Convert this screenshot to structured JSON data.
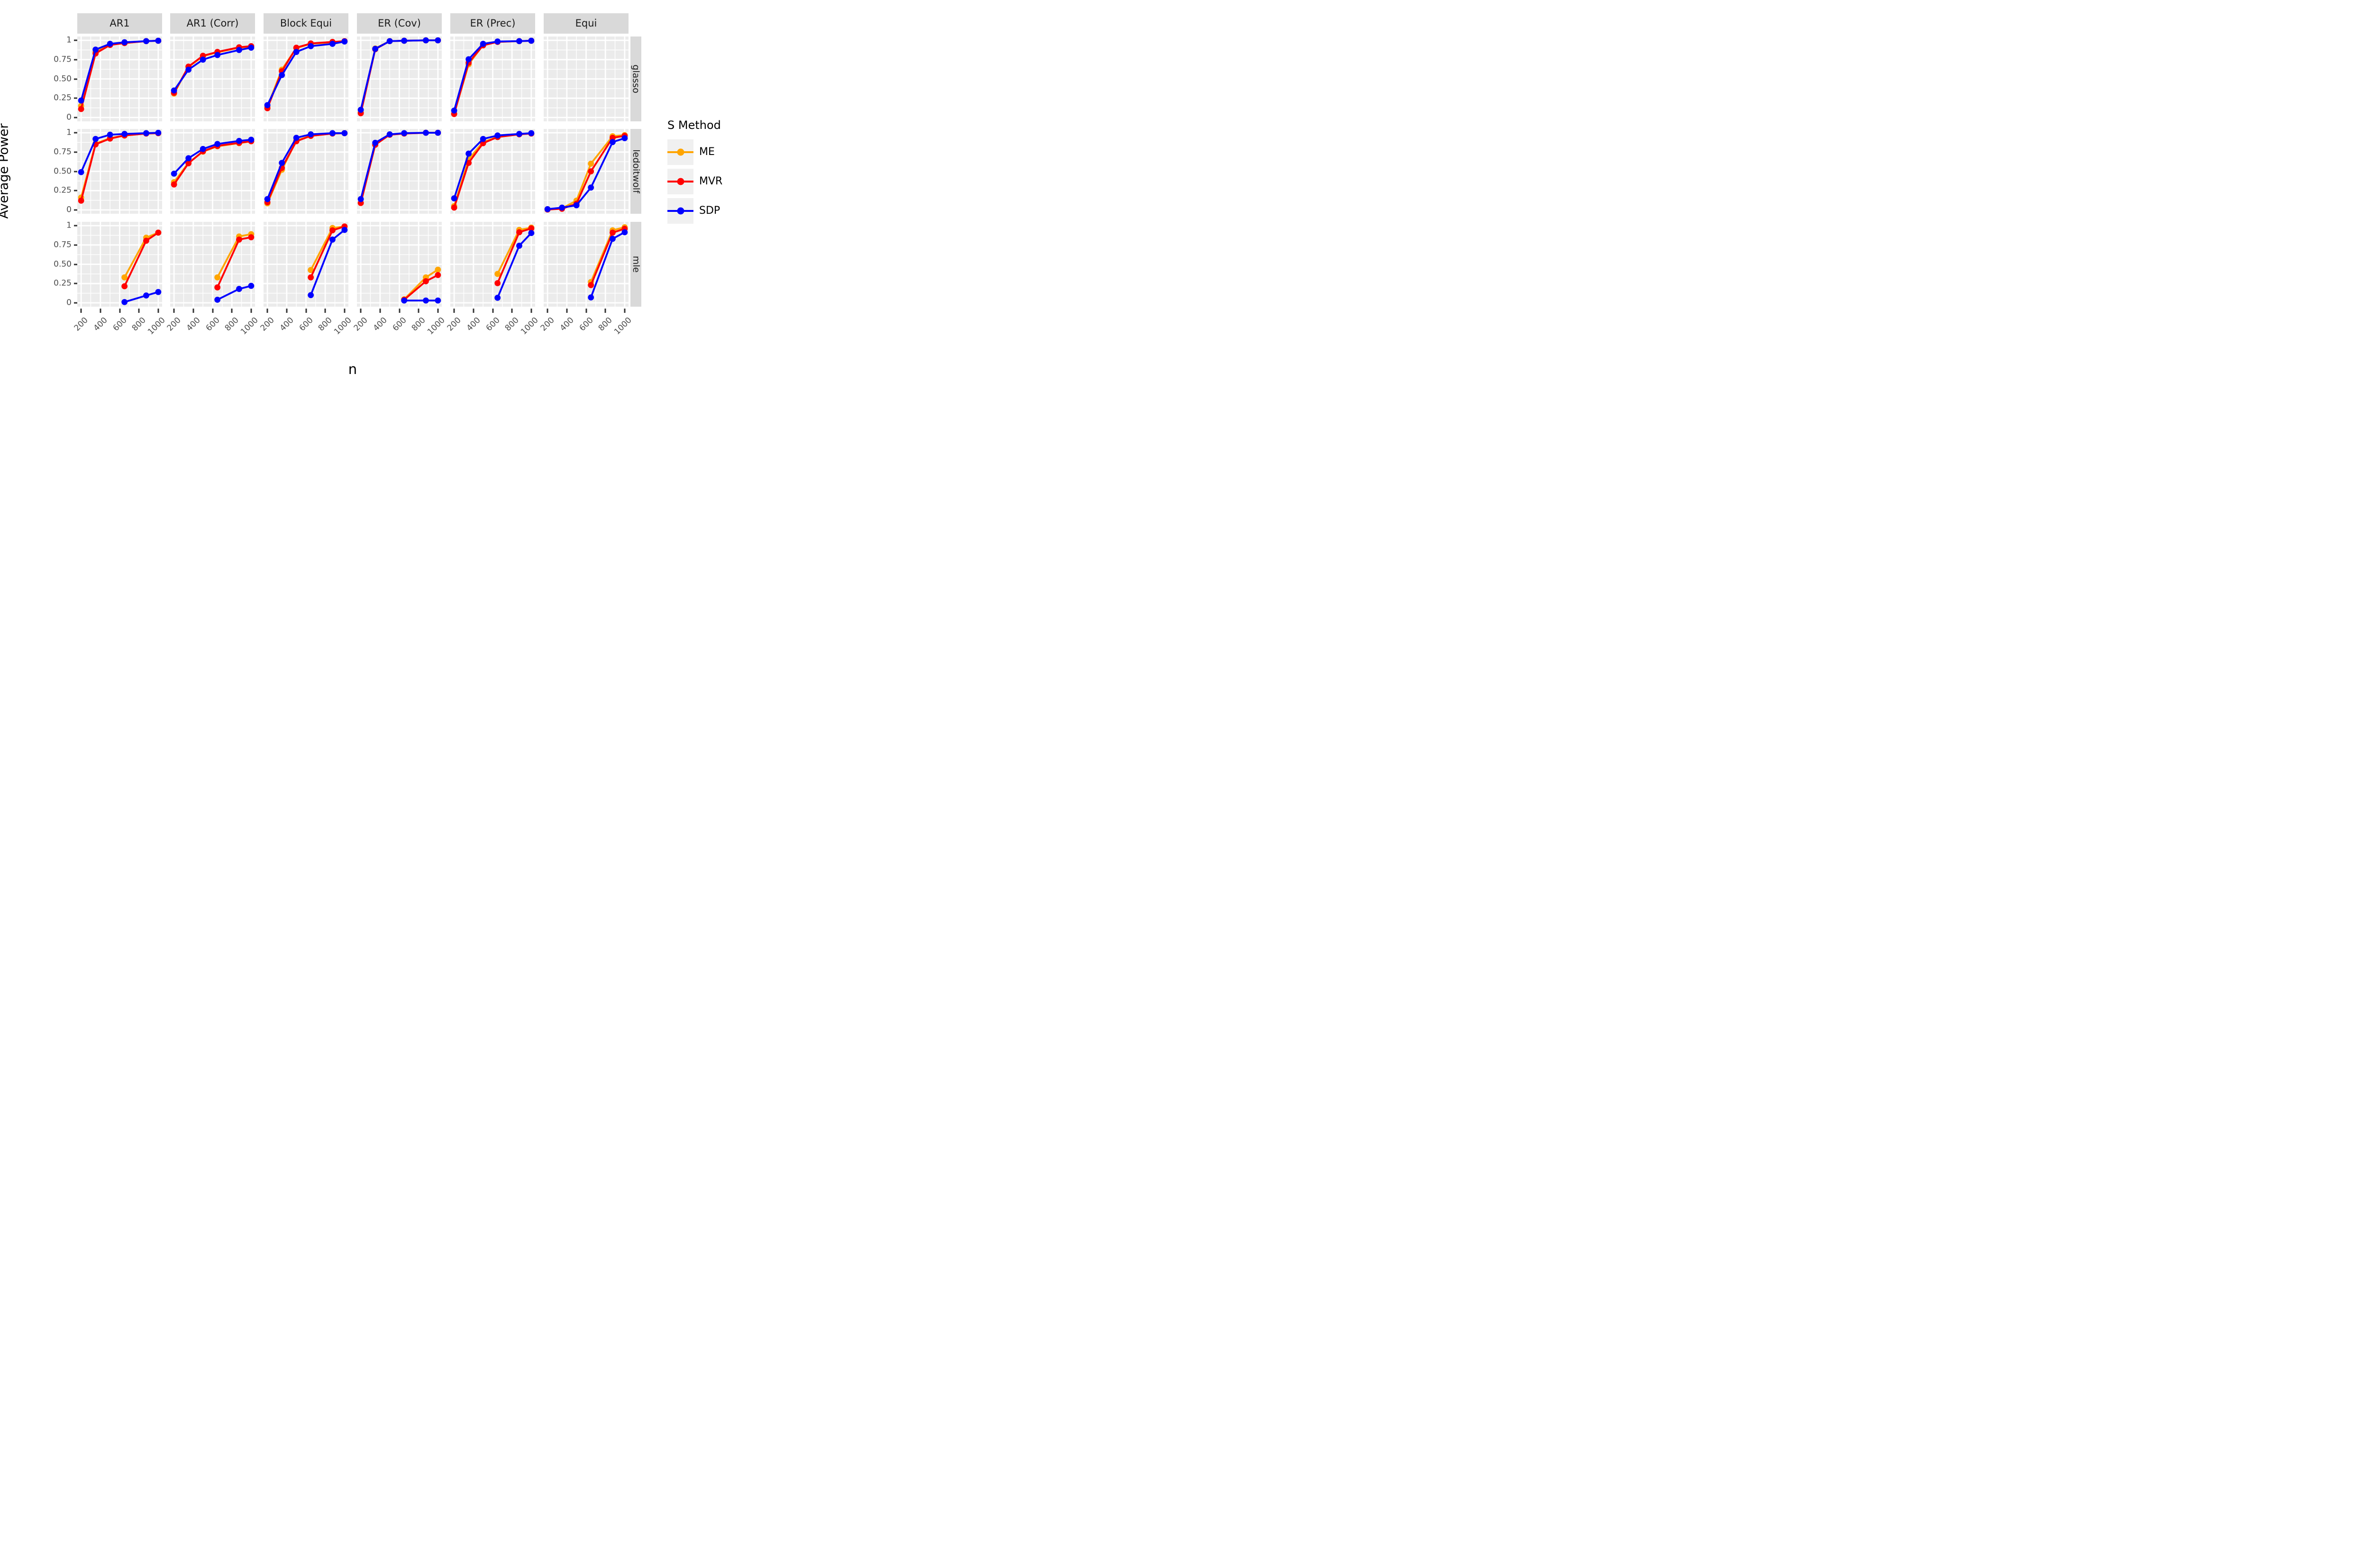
{
  "y_axis": {
    "title": "Average Power",
    "tick_labels": [
      "1",
      "0.75",
      "0.50",
      "0.25",
      "0"
    ],
    "tick_values": [
      1,
      0.75,
      0.5,
      0.25,
      0
    ]
  },
  "x_axis": {
    "title": "n",
    "tick_labels": [
      "200",
      "400",
      "600",
      "800",
      "1000"
    ],
    "tick_values": [
      200,
      400,
      600,
      800,
      1000
    ]
  },
  "facets": {
    "columns": [
      "AR1",
      "AR1 (Corr)",
      "Block Equi",
      "ER (Cov)",
      "ER (Prec)",
      "Equi"
    ],
    "rows": [
      "glasso",
      "ledoitwolf",
      "mle"
    ]
  },
  "legend": {
    "title": "S Method",
    "entries": [
      {
        "label": "ME",
        "color": "#FFA500"
      },
      {
        "label": "MVR",
        "color": "#FF0000"
      },
      {
        "label": "SDP",
        "color": "#0000FF"
      }
    ]
  },
  "chart_data": {
    "type": "line",
    "x": [
      200,
      350,
      500,
      650,
      875,
      1000
    ],
    "xlabel": "n",
    "ylabel": "Average Power",
    "xlim": [
      160,
      1040
    ],
    "ylim": [
      -0.05,
      1.05
    ],
    "x_major_ticks": [
      200,
      400,
      600,
      800,
      1000
    ],
    "x_minor_ticks": [
      300,
      500,
      700,
      900
    ],
    "y_major_ticks": [
      0,
      0.25,
      0.5,
      0.75,
      1
    ],
    "y_minor_ticks": [
      0.125,
      0.375,
      0.625,
      0.875
    ],
    "grid": "white-on-gray",
    "legend_position": "right",
    "series_order": [
      "ME",
      "MVR",
      "SDP"
    ],
    "series_colors": {
      "ME": "#FFA500",
      "MVR": "#FF0000",
      "SDP": "#0000FF"
    },
    "panels": [
      {
        "row": "glasso",
        "col": "AR1",
        "series": {
          "ME": [
            0.15,
            0.85,
            0.945,
            0.965,
            0.99,
            0.995
          ],
          "MVR": [
            0.11,
            0.83,
            0.94,
            0.965,
            0.99,
            0.995
          ],
          "SDP": [
            0.22,
            0.88,
            0.955,
            0.975,
            0.99,
            0.995
          ]
        }
      },
      {
        "row": "glasso",
        "col": "AR1 (Corr)",
        "series": {
          "ME": [
            0.31,
            0.655,
            0.795,
            0.845,
            0.905,
            0.92
          ],
          "MVR": [
            0.32,
            0.66,
            0.8,
            0.85,
            0.91,
            0.925
          ],
          "SDP": [
            0.35,
            0.62,
            0.75,
            0.81,
            0.875,
            0.905
          ]
        }
      },
      {
        "row": "glasso",
        "col": "Block Equi",
        "series": {
          "ME": [
            0.14,
            0.62,
            0.9,
            0.955,
            0.975,
            0.99
          ],
          "MVR": [
            0.12,
            0.6,
            0.905,
            0.96,
            0.98,
            0.99
          ],
          "SDP": [
            0.16,
            0.55,
            0.85,
            0.925,
            0.955,
            0.985
          ]
        }
      },
      {
        "row": "glasso",
        "col": "ER (Cov)",
        "series": {
          "ME": [
            0.065,
            0.895,
            0.99,
            0.995,
            1.0,
            1.0
          ],
          "MVR": [
            0.055,
            0.885,
            0.99,
            0.995,
            1.0,
            1.0
          ],
          "SDP": [
            0.1,
            0.89,
            0.99,
            0.995,
            1.0,
            1.0
          ]
        }
      },
      {
        "row": "glasso",
        "col": "ER (Prec)",
        "series": {
          "ME": [
            0.05,
            0.69,
            0.94,
            0.98,
            0.99,
            0.995
          ],
          "MVR": [
            0.045,
            0.71,
            0.935,
            0.98,
            0.99,
            0.995
          ],
          "SDP": [
            0.09,
            0.755,
            0.955,
            0.985,
            0.99,
            0.995
          ]
        }
      },
      {
        "row": "glasso",
        "col": "Equi",
        "series": {}
      },
      {
        "row": "ledoitwolf",
        "col": "AR1",
        "series": {
          "ME": [
            0.16,
            0.86,
            0.93,
            0.965,
            0.99,
            0.995
          ],
          "MVR": [
            0.12,
            0.85,
            0.925,
            0.965,
            0.99,
            0.995
          ],
          "SDP": [
            0.49,
            0.92,
            0.975,
            0.985,
            0.995,
            1.0
          ]
        }
      },
      {
        "row": "ledoitwolf",
        "col": "AR1 (Corr)",
        "series": {
          "ME": [
            0.36,
            0.61,
            0.755,
            0.825,
            0.865,
            0.89
          ],
          "MVR": [
            0.33,
            0.605,
            0.76,
            0.83,
            0.87,
            0.89
          ],
          "SDP": [
            0.47,
            0.67,
            0.79,
            0.855,
            0.895,
            0.91
          ]
        }
      },
      {
        "row": "ledoitwolf",
        "col": "Block Equi",
        "series": {
          "ME": [
            0.085,
            0.52,
            0.9,
            0.96,
            0.99,
            0.995
          ],
          "MVR": [
            0.1,
            0.545,
            0.89,
            0.96,
            0.99,
            0.995
          ],
          "SDP": [
            0.14,
            0.61,
            0.935,
            0.98,
            0.995,
            0.995
          ]
        }
      },
      {
        "row": "ledoitwolf",
        "col": "ER (Cov)",
        "series": {
          "ME": [
            0.09,
            0.845,
            0.975,
            0.99,
            1.0,
            1.0
          ],
          "MVR": [
            0.09,
            0.845,
            0.975,
            0.99,
            1.0,
            1.0
          ],
          "SDP": [
            0.14,
            0.87,
            0.98,
            0.995,
            1.0,
            1.0
          ]
        }
      },
      {
        "row": "ledoitwolf",
        "col": "ER (Prec)",
        "series": {
          "ME": [
            0.05,
            0.655,
            0.88,
            0.945,
            0.98,
            0.99
          ],
          "MVR": [
            0.03,
            0.61,
            0.865,
            0.945,
            0.98,
            0.99
          ],
          "SDP": [
            0.15,
            0.73,
            0.92,
            0.965,
            0.985,
            0.995
          ]
        }
      },
      {
        "row": "ledoitwolf",
        "col": "Equi",
        "series": {
          "ME": [
            0.01,
            0.02,
            0.12,
            0.6,
            0.955,
            0.97
          ],
          "MVR": [
            0.005,
            0.015,
            0.08,
            0.5,
            0.935,
            0.96
          ],
          "SDP": [
            0.01,
            0.03,
            0.06,
            0.29,
            0.88,
            0.93
          ]
        }
      },
      {
        "row": "mle",
        "col": "AR1",
        "series": {
          "ME": [
            null,
            null,
            null,
            0.33,
            0.845,
            0.91
          ],
          "MVR": [
            null,
            null,
            null,
            0.215,
            0.805,
            0.91
          ],
          "SDP": [
            null,
            null,
            null,
            0.01,
            0.095,
            0.14
          ]
        }
      },
      {
        "row": "mle",
        "col": "AR1 (Corr)",
        "series": {
          "ME": [
            null,
            null,
            null,
            0.33,
            0.86,
            0.89
          ],
          "MVR": [
            null,
            null,
            null,
            0.2,
            0.82,
            0.85
          ],
          "SDP": [
            null,
            null,
            null,
            0.04,
            0.18,
            0.22
          ]
        }
      },
      {
        "row": "mle",
        "col": "Block Equi",
        "series": {
          "ME": [
            null,
            null,
            null,
            0.425,
            0.97,
            0.99
          ],
          "MVR": [
            null,
            null,
            null,
            0.33,
            0.94,
            0.99
          ],
          "SDP": [
            null,
            null,
            null,
            0.1,
            0.82,
            0.945
          ]
        }
      },
      {
        "row": "mle",
        "col": "ER (Cov)",
        "series": {
          "ME": [
            null,
            null,
            null,
            0.045,
            0.33,
            0.43
          ],
          "MVR": [
            null,
            null,
            null,
            0.04,
            0.28,
            0.36
          ],
          "SDP": [
            null,
            null,
            null,
            0.03,
            0.03,
            0.03
          ]
        }
      },
      {
        "row": "mle",
        "col": "ER (Prec)",
        "series": {
          "ME": [
            null,
            null,
            null,
            0.375,
            0.945,
            0.975
          ],
          "MVR": [
            null,
            null,
            null,
            0.255,
            0.915,
            0.965
          ],
          "SDP": [
            null,
            null,
            null,
            0.065,
            0.74,
            0.905
          ]
        }
      },
      {
        "row": "mle",
        "col": "Equi",
        "series": {
          "ME": [
            null,
            null,
            null,
            0.27,
            0.94,
            0.98
          ],
          "MVR": [
            null,
            null,
            null,
            0.23,
            0.91,
            0.96
          ],
          "SDP": [
            null,
            null,
            null,
            0.07,
            0.83,
            0.915
          ]
        }
      }
    ]
  }
}
